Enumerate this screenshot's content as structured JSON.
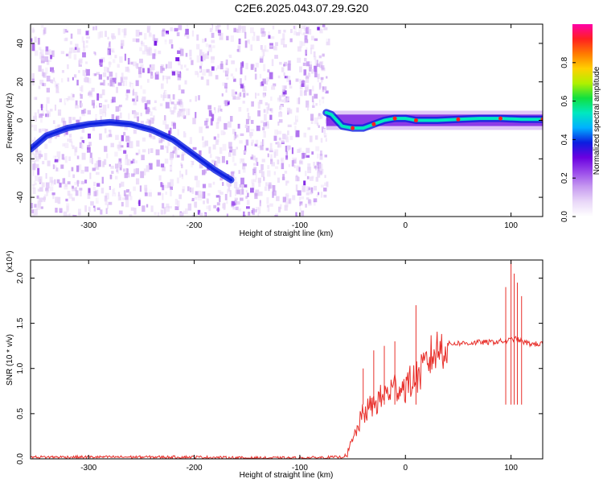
{
  "figure": {
    "title": "C2E6.2025.043.07.29.G20"
  },
  "chart_data": [
    {
      "type": "heatmap",
      "title": "C2E6.2025.043.07.29.G20",
      "xlabel": "Height of straight line (km)",
      "ylabel": "Frequency (Hz)",
      "xlim": [
        -355,
        130
      ],
      "ylim": [
        -50,
        50
      ],
      "x_ticks": [
        -300,
        -200,
        -100,
        0,
        100
      ],
      "y_ticks": [
        -40,
        -20,
        0,
        20,
        40
      ],
      "colorbar": {
        "label": "Normalized spectral amplitude",
        "range": [
          0,
          1
        ],
        "ticks": [
          "0.0",
          "0.2",
          "0.4",
          "0.6",
          "0.8"
        ],
        "colormap": [
          "#ffffff",
          "#e9d8f8",
          "#c79bf0",
          "#9a4bea",
          "#6a00e0",
          "#0b1ee0",
          "#00b0ff",
          "#00e8c0",
          "#10e040",
          "#b0f000",
          "#ffd000",
          "#ff7a00",
          "#ff2020",
          "#ff00a8"
        ]
      },
      "ridge_left": {
        "x": [
          -355,
          -340,
          -320,
          -300,
          -280,
          -260,
          -240,
          -220,
          -200,
          -190,
          -180,
          -165
        ],
        "y": [
          -15,
          -8,
          -4,
          -2,
          -1,
          -2,
          -5,
          -10,
          -18,
          -22,
          -26,
          -31
        ]
      },
      "ridge_right": {
        "x": [
          -75,
          -70,
          -65,
          -60,
          -50,
          -40,
          -30,
          -20,
          -10,
          0,
          10,
          30,
          50,
          70,
          90,
          110,
          130
        ],
        "y": [
          4,
          3,
          0,
          -3,
          -4,
          -4,
          -2,
          0,
          1,
          1,
          0,
          0,
          0.5,
          1,
          1,
          0.5,
          0.5
        ]
      },
      "background_noise_end_x": -75
    },
    {
      "type": "line",
      "title": "",
      "xlabel": "Height of straight line (km)",
      "ylabel": "SNR (10 * v/v)",
      "y_multiplier": "(x10⁴)",
      "xlim": [
        -355,
        130
      ],
      "ylim": [
        0,
        2.2
      ],
      "x_ticks": [
        -300,
        -200,
        -100,
        0,
        100
      ],
      "y_ticks": [
        "0.0",
        "0.5",
        "1.0",
        "1.5",
        "2.0"
      ],
      "series": [
        {
          "color": "#e8302b",
          "x": [
            -355,
            -300,
            -250,
            -200,
            -150,
            -100,
            -60,
            -55,
            -50,
            -45,
            -40,
            -35,
            -30,
            -25,
            -20,
            -15,
            -10,
            -5,
            0,
            5,
            10,
            15,
            20,
            25,
            30,
            35,
            40,
            50,
            60,
            70,
            80,
            90,
            95,
            100,
            103,
            106,
            110,
            115,
            120,
            130
          ],
          "y": [
            0.02,
            0.02,
            0.02,
            0.02,
            0.01,
            0.01,
            0.02,
            0.05,
            0.2,
            0.35,
            0.5,
            0.55,
            0.6,
            0.65,
            0.7,
            0.75,
            0.8,
            0.8,
            0.8,
            0.85,
            0.9,
            0.95,
            1.05,
            1.15,
            1.2,
            1.24,
            1.27,
            1.28,
            1.28,
            1.29,
            1.29,
            1.3,
            1.3,
            1.32,
            1.33,
            1.32,
            1.3,
            1.28,
            1.27,
            1.27
          ]
        }
      ],
      "spikes": {
        "x": [
          -40,
          -30,
          -20,
          -10,
          10,
          95,
          100,
          103,
          106,
          110
        ],
        "y": [
          1.0,
          1.2,
          1.25,
          1.3,
          1.7,
          1.9,
          2.2,
          2.05,
          1.95,
          1.8
        ]
      }
    }
  ]
}
